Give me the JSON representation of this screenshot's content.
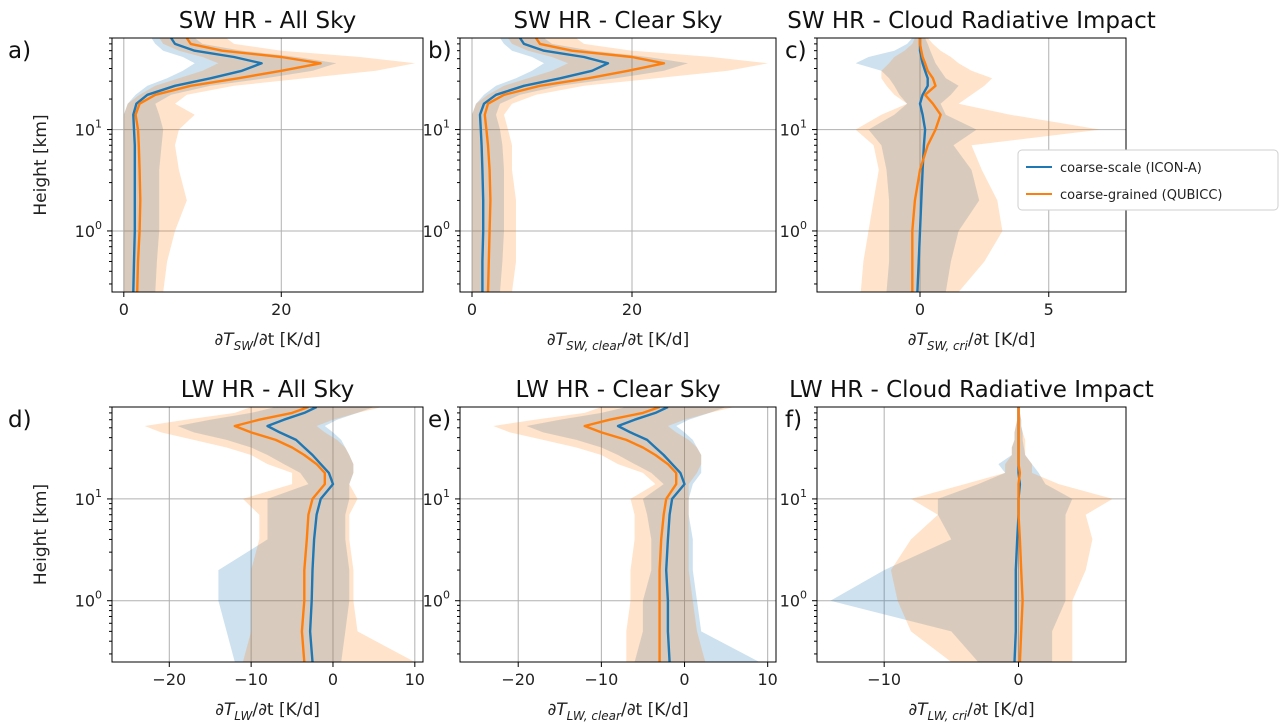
{
  "legend": {
    "placement": "right, beside panel c",
    "entries": [
      {
        "label": "coarse-scale (ICON-A)",
        "color": "#1f77b4"
      },
      {
        "label": "coarse-grained (QUBICC)",
        "color": "#ff7f0e"
      }
    ]
  },
  "colors": {
    "icon": "#1f77b4",
    "qubicc": "#ff7f0e",
    "grid": "#b0b0b0"
  },
  "chart_data": [
    {
      "type": "line",
      "letter": "a)",
      "title": "SW HR - All Sky",
      "xlabel_base": "∂T",
      "xlabel_sub": "SW",
      "xlabel_tail": "/∂t [K/d]",
      "ylabel": "Height [km]",
      "xlim": [
        -1.5,
        38
      ],
      "ylim": [
        0.25,
        80
      ],
      "yscale": "log",
      "grid": true,
      "xticks": [
        0,
        20
      ],
      "yticks": [
        {
          "v": 1,
          "mant": "10",
          "exp": "0"
        },
        {
          "v": 10,
          "mant": "10",
          "exp": "1"
        }
      ],
      "height_km": [
        0.25,
        0.5,
        1,
        2,
        4,
        7,
        10,
        14,
        18,
        22,
        27,
        32,
        38,
        45,
        52,
        60,
        70,
        80
      ],
      "series": [
        {
          "name": "coarse-scale (ICON-A)",
          "mean": [
            1.2,
            1.3,
            1.4,
            1.4,
            1.4,
            1.4,
            1.3,
            1.2,
            1.6,
            3.0,
            6.5,
            11.0,
            15.0,
            17.5,
            14.0,
            9.0,
            6.5,
            6.0
          ],
          "low": [
            0,
            0,
            0,
            0,
            0,
            0,
            0,
            0,
            0.5,
            1.5,
            3.0,
            5.5,
            7.5,
            9.0,
            7.5,
            5.0,
            4.0,
            3.5
          ],
          "high": [
            4.0,
            4.2,
            4.5,
            4.5,
            4.5,
            4.8,
            5.0,
            4.5,
            4.0,
            6.0,
            11.0,
            18.0,
            24.0,
            27.0,
            22.0,
            15.0,
            10.0,
            9.0
          ]
        },
        {
          "name": "coarse-grained (QUBICC)",
          "mean": [
            1.7,
            1.8,
            2.0,
            2.1,
            2.0,
            1.9,
            1.8,
            1.5,
            2.0,
            4.0,
            8.5,
            14.5,
            20.0,
            25.0,
            20.0,
            12.5,
            8.5,
            8.0
          ],
          "low": [
            0,
            0,
            0,
            0,
            0,
            0,
            0,
            0,
            0.5,
            2.0,
            4.0,
            7.0,
            10.0,
            12.0,
            10.0,
            7.0,
            5.0,
            4.5
          ],
          "high": [
            5.0,
            5.5,
            6.5,
            8.0,
            7.0,
            6.5,
            7.0,
            9.0,
            6.5,
            8.0,
            14.0,
            23.0,
            32.0,
            37.0,
            30.0,
            20.0,
            14.0,
            13.0
          ]
        }
      ]
    },
    {
      "type": "line",
      "letter": "b)",
      "title": "SW HR - Clear Sky",
      "xlabel_base": "∂T",
      "xlabel_sub": "SW, clear",
      "xlabel_tail": "/∂t [K/d]",
      "ylabel": "",
      "xlim": [
        -1.5,
        38
      ],
      "ylim": [
        0.25,
        80
      ],
      "yscale": "log",
      "grid": true,
      "xticks": [
        0,
        20
      ],
      "yticks": [
        {
          "v": 1,
          "mant": "10",
          "exp": "0"
        },
        {
          "v": 10,
          "mant": "10",
          "exp": "1"
        }
      ],
      "height_km": [
        0.25,
        0.5,
        1,
        2,
        4,
        7,
        10,
        14,
        18,
        22,
        27,
        32,
        38,
        45,
        52,
        60,
        70,
        80
      ],
      "series": [
        {
          "name": "coarse-scale (ICON-A)",
          "mean": [
            1.3,
            1.3,
            1.4,
            1.4,
            1.3,
            1.2,
            1.1,
            1.0,
            1.5,
            3.0,
            6.5,
            11.0,
            15.0,
            17.0,
            14.0,
            9.0,
            6.5,
            6.0
          ],
          "low": [
            0,
            0,
            0,
            0,
            0,
            0,
            0,
            0,
            0.5,
            1.5,
            3.0,
            5.5,
            7.5,
            9.0,
            7.5,
            5.0,
            4.0,
            3.5
          ],
          "high": [
            3.5,
            3.8,
            4.0,
            4.0,
            4.0,
            3.8,
            3.5,
            3.0,
            3.5,
            6.0,
            11.0,
            18.0,
            24.0,
            27.0,
            22.0,
            15.0,
            10.0,
            9.0
          ]
        },
        {
          "name": "coarse-grained (QUBICC)",
          "mean": [
            2.0,
            2.1,
            2.2,
            2.3,
            2.2,
            2.0,
            1.8,
            1.6,
            2.0,
            4.0,
            8.5,
            14.5,
            19.5,
            24.0,
            20.0,
            12.5,
            8.5,
            8.0
          ],
          "low": [
            0,
            0,
            0,
            0,
            0,
            0,
            0,
            0,
            0.5,
            2.0,
            4.0,
            7.0,
            10.0,
            12.0,
            10.0,
            7.0,
            5.0,
            4.5
          ],
          "high": [
            5.0,
            5.5,
            5.5,
            5.5,
            5.0,
            5.0,
            4.5,
            4.0,
            5.0,
            8.0,
            14.0,
            23.0,
            32.0,
            37.0,
            30.0,
            20.0,
            14.0,
            13.0
          ]
        }
      ]
    },
    {
      "type": "line",
      "letter": "c)",
      "title": "SW HR - Cloud Radiative Impact",
      "xlabel_base": "∂T",
      "xlabel_sub": "SW, cri",
      "xlabel_tail": "/∂t [K/d]",
      "ylabel": "",
      "xlim": [
        -4,
        8
      ],
      "ylim": [
        0.25,
        80
      ],
      "yscale": "log",
      "grid": true,
      "xticks": [
        0,
        5
      ],
      "yticks": [
        {
          "v": 1,
          "mant": "10",
          "exp": "0"
        },
        {
          "v": 10,
          "mant": "10",
          "exp": "1"
        }
      ],
      "height_km": [
        0.25,
        0.5,
        1,
        2,
        4,
        7,
        10,
        14,
        18,
        22,
        27,
        32,
        38,
        45,
        52,
        60,
        70,
        80
      ],
      "series": [
        {
          "name": "coarse-scale (ICON-A)",
          "mean": [
            -0.1,
            -0.05,
            0.0,
            0.05,
            0.1,
            0.15,
            0.2,
            0.1,
            0.0,
            0.1,
            0.3,
            0.3,
            0.2,
            0.1,
            0.05,
            0.0,
            0.0,
            0.0
          ],
          "low": [
            -1.3,
            -1.2,
            -1.2,
            -1.2,
            -1.3,
            -1.5,
            -2.0,
            -1.0,
            -0.5,
            -0.8,
            -1.0,
            -1.2,
            -1.5,
            -2.5,
            -2.0,
            -1.0,
            -0.5,
            -0.3
          ],
          "high": [
            1.0,
            1.2,
            1.5,
            2.3,
            2.0,
            1.3,
            2.2,
            1.0,
            0.8,
            1.2,
            1.5,
            1.0,
            0.8,
            0.6,
            0.5,
            0.4,
            0.3,
            0.2
          ]
        },
        {
          "name": "coarse-grained (QUBICC)",
          "mean": [
            -0.3,
            -0.3,
            -0.3,
            -0.2,
            0.0,
            0.3,
            0.6,
            0.8,
            0.5,
            0.2,
            0.6,
            0.5,
            0.3,
            0.2,
            0.1,
            0.05,
            0.0,
            0.0
          ],
          "low": [
            -2.3,
            -2.2,
            -2.0,
            -1.8,
            -1.6,
            -1.8,
            -2.5,
            -1.5,
            -0.5,
            -1.0,
            -1.3,
            -1.5,
            -1.5,
            -1.2,
            -1.0,
            -0.6,
            -0.3,
            -0.2
          ],
          "high": [
            1.5,
            2.5,
            3.2,
            3.0,
            2.4,
            2.0,
            7.0,
            3.5,
            1.5,
            2.0,
            2.5,
            2.8,
            2.0,
            1.5,
            1.2,
            0.8,
            0.5,
            0.3
          ]
        }
      ]
    },
    {
      "type": "line",
      "letter": "d)",
      "title": "LW HR - All Sky",
      "xlabel_base": "∂T",
      "xlabel_sub": "LW",
      "xlabel_tail": "/∂t [K/d]",
      "ylabel": "Height [km]",
      "xlim": [
        -27,
        11
      ],
      "ylim": [
        0.25,
        80
      ],
      "yscale": "log",
      "grid": true,
      "xticks": [
        -20,
        -10,
        0,
        10
      ],
      "yticks": [
        {
          "v": 1,
          "mant": "10",
          "exp": "0"
        },
        {
          "v": 10,
          "mant": "10",
          "exp": "1"
        }
      ],
      "height_km": [
        0.25,
        0.5,
        1,
        2,
        4,
        7,
        10,
        14,
        18,
        22,
        27,
        32,
        38,
        45,
        52,
        60,
        70,
        80
      ],
      "series": [
        {
          "name": "coarse-scale (ICON-A)",
          "mean": [
            -2.5,
            -2.8,
            -2.6,
            -2.5,
            -2.3,
            -2.0,
            -1.5,
            0.0,
            -0.5,
            -1.5,
            -2.5,
            -3.5,
            -4.5,
            -6.5,
            -8.0,
            -6.0,
            -3.5,
            -2.0
          ],
          "low": [
            -12,
            -13,
            -14,
            -14,
            -8,
            -8,
            -8,
            -3,
            -4,
            -6,
            -8,
            -10,
            -13,
            -17,
            -19,
            -15,
            -10,
            -7
          ],
          "high": [
            1.0,
            1.5,
            2.0,
            2.0,
            1.5,
            1.5,
            2.0,
            2.0,
            2.5,
            2.5,
            2.0,
            1.5,
            1.0,
            0.0,
            -1.0,
            0.5,
            3.0,
            5.0
          ]
        },
        {
          "name": "coarse-grained (QUBICC)",
          "mean": [
            -3.5,
            -3.8,
            -3.5,
            -3.5,
            -3.2,
            -3.0,
            -2.5,
            -1.0,
            -1.0,
            -2.0,
            -3.5,
            -5.0,
            -7.0,
            -10.0,
            -12.0,
            -9.0,
            -5.0,
            -3.0
          ],
          "low": [
            -11,
            -10,
            -10,
            -10,
            -9,
            -9,
            -11,
            -5,
            -5,
            -8,
            -10,
            -13,
            -17,
            -21,
            -23,
            -18,
            -12,
            -10
          ],
          "high": [
            10,
            3.0,
            2.5,
            2.5,
            2.0,
            2.0,
            3.0,
            2.0,
            2.5,
            2.5,
            2.0,
            1.5,
            0.5,
            -1.0,
            -2.0,
            0.0,
            3.0,
            6.0
          ]
        }
      ]
    },
    {
      "type": "line",
      "letter": "e)",
      "title": "LW HR - Clear Sky",
      "xlabel_base": "∂T",
      "xlabel_sub": "LW, clear",
      "xlabel_tail": "/∂t [K/d]",
      "ylabel": "",
      "xlim": [
        -27,
        11
      ],
      "ylim": [
        0.25,
        80
      ],
      "yscale": "log",
      "grid": true,
      "xticks": [
        -20,
        -10,
        0,
        10
      ],
      "yticks": [
        {
          "v": 1,
          "mant": "10",
          "exp": "0"
        },
        {
          "v": 10,
          "mant": "10",
          "exp": "1"
        }
      ],
      "height_km": [
        0.25,
        0.5,
        1,
        2,
        4,
        7,
        10,
        14,
        18,
        22,
        27,
        32,
        38,
        45,
        52,
        60,
        70,
        80
      ],
      "series": [
        {
          "name": "coarse-scale (ICON-A)",
          "mean": [
            -1.8,
            -2.0,
            -2.0,
            -2.2,
            -2.0,
            -1.8,
            -1.5,
            0.0,
            -0.5,
            -1.5,
            -2.5,
            -3.5,
            -4.5,
            -6.5,
            -8.0,
            -6.0,
            -3.5,
            -2.0
          ],
          "low": [
            -6,
            -5,
            -5,
            -4,
            -4,
            -4.5,
            -5,
            -2.5,
            -4,
            -6,
            -8,
            -10,
            -13,
            -17,
            -19,
            -15,
            -10,
            -7
          ],
          "high": [
            9.0,
            2.0,
            1.5,
            1.0,
            1.0,
            0.5,
            0.5,
            1.0,
            2.0,
            2.0,
            2.0,
            1.5,
            1.0,
            0.0,
            -1.0,
            0.5,
            3.0,
            5.0
          ]
        },
        {
          "name": "coarse-grained (QUBICC)",
          "mean": [
            -3.0,
            -3.0,
            -3.0,
            -3.0,
            -2.8,
            -2.5,
            -2.2,
            -1.0,
            -1.0,
            -2.0,
            -3.5,
            -5.0,
            -7.0,
            -10.0,
            -12.0,
            -9.0,
            -5.0,
            -3.0
          ],
          "low": [
            -7,
            -7,
            -6.5,
            -6.5,
            -6,
            -6,
            -6.5,
            -3.5,
            -5,
            -8,
            -10,
            -13,
            -17,
            -21,
            -23,
            -18,
            -12,
            -10
          ],
          "high": [
            2.5,
            1.5,
            1.0,
            0.5,
            0.5,
            0.5,
            0.5,
            0.5,
            1.5,
            2.0,
            2.0,
            1.5,
            0.5,
            -1.0,
            -2.0,
            0.0,
            3.0,
            6.0
          ]
        }
      ]
    },
    {
      "type": "line",
      "letter": "f)",
      "title": "LW HR - Cloud Radiative Impact",
      "xlabel_base": "∂T",
      "xlabel_sub": "LW, cri",
      "xlabel_tail": "/∂t [K/d]",
      "ylabel": "",
      "xlim": [
        -15,
        8
      ],
      "ylim": [
        0.25,
        80
      ],
      "yscale": "log",
      "grid": true,
      "xticks": [
        -10,
        0
      ],
      "yticks": [
        {
          "v": 1,
          "mant": "10",
          "exp": "0"
        },
        {
          "v": 10,
          "mant": "10",
          "exp": "1"
        }
      ],
      "height_km": [
        0.25,
        0.5,
        1,
        2,
        4,
        7,
        10,
        14,
        18,
        22,
        27,
        32,
        38,
        45,
        52,
        60,
        70,
        80
      ],
      "series": [
        {
          "name": "coarse-scale (ICON-A)",
          "mean": [
            -0.3,
            -0.2,
            -0.2,
            -0.2,
            -0.1,
            0.0,
            0.0,
            0.1,
            0.0,
            0.0,
            0.0,
            0.0,
            0.0,
            0.0,
            0.0,
            0.0,
            0.0,
            0.0
          ],
          "low": [
            -3.0,
            -5.0,
            -14.0,
            -10.0,
            -5.0,
            -6.0,
            -6.0,
            -3.0,
            -1.0,
            -1.5,
            -0.5,
            -0.5,
            -0.3,
            -0.3,
            -0.2,
            -0.1,
            -0.1,
            -0.1
          ],
          "high": [
            2.5,
            2.5,
            3.5,
            3.5,
            3.5,
            3.5,
            4.0,
            2.0,
            1.5,
            1.0,
            0.5,
            0.4,
            0.3,
            0.3,
            0.2,
            0.2,
            0.1,
            0.1
          ]
        },
        {
          "name": "coarse-grained (QUBICC)",
          "mean": [
            0.1,
            0.2,
            0.3,
            0.2,
            0.1,
            0.0,
            0.0,
            0.0,
            0.1,
            0.0,
            0.0,
            0.0,
            0.0,
            0.0,
            0.0,
            0.0,
            0.0,
            0.0
          ],
          "low": [
            -5.0,
            -8.0,
            -9.0,
            -9.5,
            -8.0,
            -6.0,
            -8.0,
            -4.0,
            -1.0,
            -1.0,
            -0.5,
            -0.5,
            -0.3,
            -0.3,
            -0.2,
            -0.1,
            -0.1,
            -0.1
          ],
          "high": [
            4.0,
            4.0,
            4.0,
            5.0,
            5.5,
            5.0,
            7.0,
            3.0,
            1.0,
            1.0,
            0.5,
            0.5,
            0.5,
            0.3,
            0.2,
            0.2,
            0.1,
            0.1
          ]
        }
      ]
    }
  ]
}
